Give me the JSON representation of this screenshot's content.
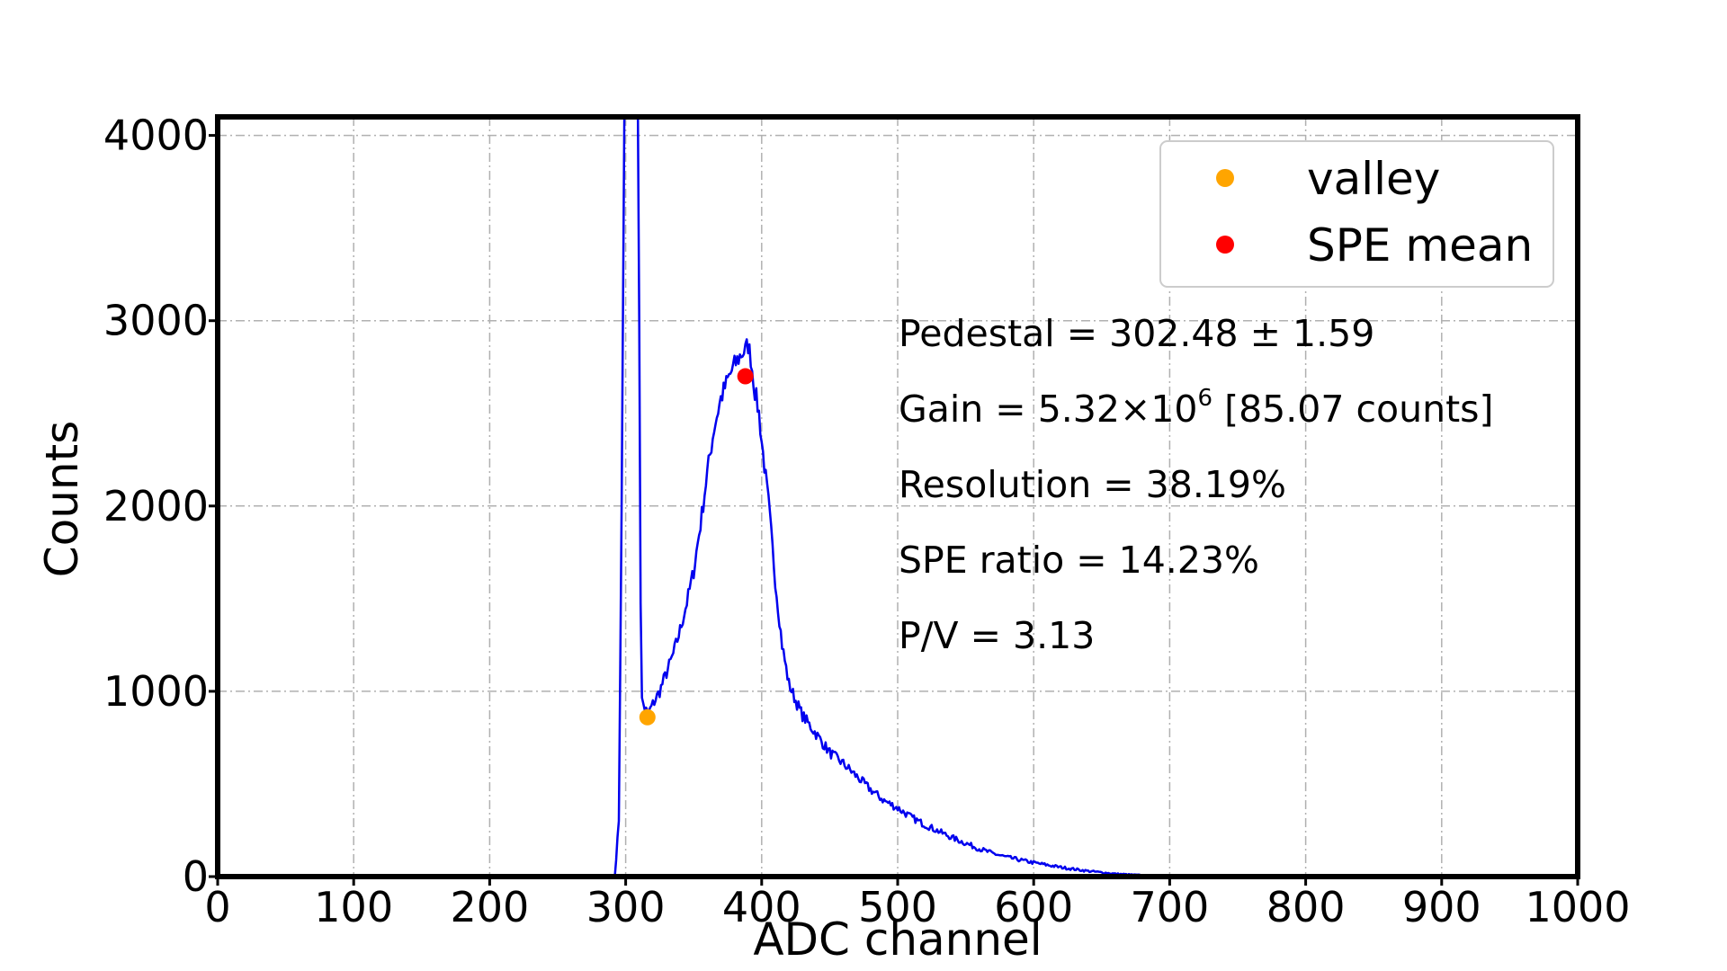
{
  "chart_data": {
    "type": "line",
    "xlabel": "ADC channel",
    "ylabel": "Counts",
    "xlim": [
      0,
      1000
    ],
    "ylim": [
      0,
      4100
    ],
    "xticks": [
      0,
      100,
      200,
      300,
      400,
      500,
      600,
      700,
      800,
      900,
      1000
    ],
    "yticks": [
      0,
      1000,
      2000,
      3000,
      4000
    ],
    "grid": true,
    "legend_position": "top-right",
    "series": [
      {
        "name": "",
        "color": "#0000ee",
        "x": [
          0,
          100,
          200,
          280,
          292,
          295,
          297,
          299,
          300,
          302,
          305,
          307,
          309,
          310,
          311,
          312,
          314,
          316,
          318,
          320,
          325,
          330,
          335,
          340,
          345,
          350,
          355,
          360,
          365,
          370,
          375,
          380,
          385,
          388,
          390,
          392,
          395,
          398,
          400,
          405,
          410,
          415,
          420,
          425,
          430,
          440,
          450,
          460,
          470,
          480,
          490,
          500,
          510,
          520,
          530,
          540,
          550,
          560,
          570,
          580,
          590,
          600,
          620,
          640,
          660,
          680,
          700,
          720,
          750,
          800,
          900,
          1000
        ],
        "y": [
          0,
          0,
          0,
          0,
          0,
          300,
          2000,
          4100,
          4100,
          4100,
          4100,
          4100,
          4100,
          3000,
          1500,
          950,
          910,
          880,
          900,
          930,
          1000,
          1100,
          1200,
          1330,
          1480,
          1650,
          1900,
          2180,
          2420,
          2580,
          2680,
          2760,
          2820,
          2840,
          2870,
          2800,
          2620,
          2500,
          2350,
          2020,
          1600,
          1250,
          1040,
          950,
          870,
          770,
          670,
          610,
          540,
          470,
          410,
          370,
          320,
          280,
          245,
          210,
          180,
          150,
          125,
          105,
          90,
          75,
          50,
          30,
          15,
          7,
          3,
          1,
          0,
          0,
          0,
          0
        ]
      }
    ],
    "markers": [
      {
        "name": "valley",
        "x": 316,
        "y": 860,
        "color": "#ffa500"
      },
      {
        "name": "SPE mean",
        "x": 388,
        "y": 2700,
        "color": "#ff0000"
      }
    ],
    "annotations": {
      "pedestal": "Pedestal = 302.48 ± 1.59",
      "gain_prefix": "Gain = 5.32×10",
      "gain_exp": "6",
      "gain_suffix": " [85.07 counts]",
      "resolution": "Resolution = 38.19%",
      "spe_ratio": "SPE ratio = 14.23%",
      "pv": "P/V = 3.13"
    }
  }
}
